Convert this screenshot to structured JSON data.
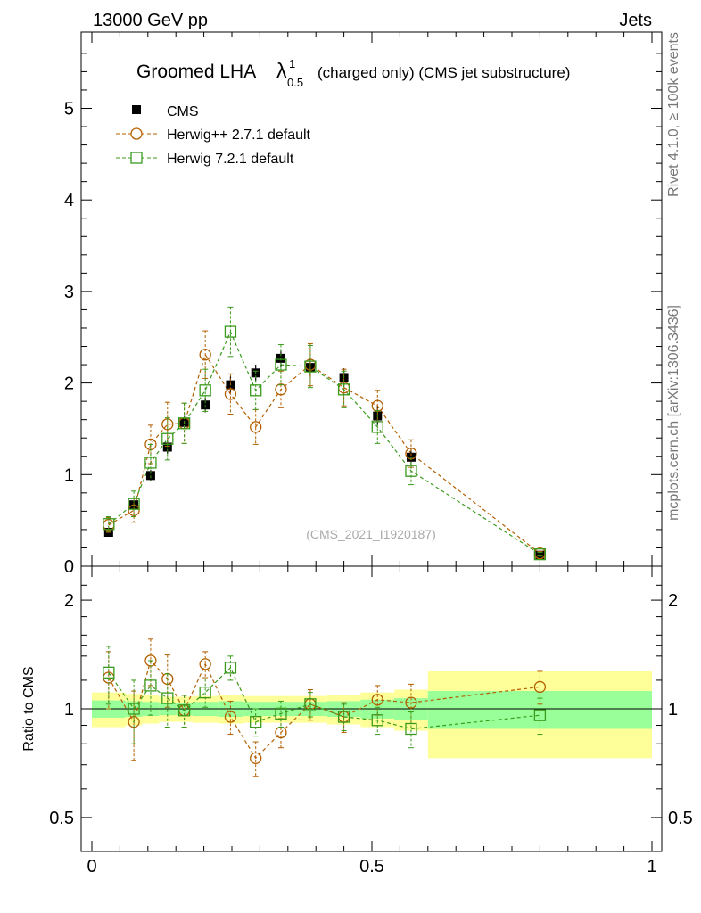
{
  "header": {
    "left": "13000 GeV pp",
    "right": "Jets"
  },
  "side_labels": {
    "rivet": "Rivet 4.1.0, ≥ 100k events",
    "mcplots": "mcplots.cern.ch [arXiv:1306.3436]"
  },
  "chart_data": {
    "type": "scatter",
    "title_main": "Groomed LHA",
    "title_lambda": "λ",
    "title_sup": "1",
    "title_sub": "0.5",
    "title_rest": "(charged only) (CMS jet substructure)",
    "analysis_tag": "(CMS_2021_I1920187)",
    "xlim": [
      0,
      1
    ],
    "ylim_main": [
      0,
      5.8
    ],
    "ylim_ratio": [
      0.4,
      2.3
    ],
    "ratio_ylabel": "Ratio to CMS",
    "x_ticks": [
      "0",
      "0.5",
      "1"
    ],
    "main_y_ticks": [
      "0",
      "1",
      "2",
      "3",
      "4",
      "5"
    ],
    "ratio_y_ticks": [
      "0.5",
      "1",
      "2"
    ],
    "bin_edges": [
      0,
      0.06,
      0.09,
      0.12,
      0.15,
      0.18,
      0.225,
      0.27,
      0.315,
      0.36,
      0.42,
      0.48,
      0.54,
      0.6,
      1.0
    ],
    "bin_centers": [
      0.03,
      0.075,
      0.105,
      0.135,
      0.165,
      0.2025,
      0.2475,
      0.2925,
      0.3375,
      0.39,
      0.45,
      0.51,
      0.57,
      0.8
    ],
    "band_inner_half": [
      0.055,
      0.05,
      0.045,
      0.04,
      0.04,
      0.045,
      0.05,
      0.045,
      0.045,
      0.045,
      0.05,
      0.06,
      0.07,
      0.12
    ],
    "band_outer_half": [
      0.11,
      0.1,
      0.09,
      0.08,
      0.08,
      0.085,
      0.09,
      0.085,
      0.085,
      0.085,
      0.095,
      0.11,
      0.13,
      0.27
    ],
    "series": [
      {
        "name": "CMS",
        "marker": "filled-square",
        "color": "#000000",
        "values": [
          0.37,
          0.67,
          0.99,
          1.3,
          1.57,
          1.76,
          1.98,
          2.11,
          2.27,
          2.17,
          2.06,
          1.64,
          1.19,
          0.12
        ],
        "errors": [
          0.04,
          0.05,
          0.06,
          0.07,
          0.07,
          0.08,
          0.09,
          0.09,
          0.1,
          0.1,
          0.1,
          0.1,
          0.1,
          0.03
        ]
      },
      {
        "name": "Herwig++ 2.7.1 default",
        "marker": "open-circle",
        "color": "#b35f00",
        "values": [
          0.45,
          0.61,
          1.33,
          1.55,
          1.56,
          2.31,
          1.88,
          1.52,
          1.93,
          2.2,
          1.95,
          1.75,
          1.23,
          0.14
        ],
        "errors": [
          0.08,
          0.13,
          0.21,
          0.24,
          0.22,
          0.26,
          0.22,
          0.19,
          0.2,
          0.23,
          0.2,
          0.17,
          0.15,
          0.02
        ],
        "ratio": [
          1.22,
          0.92,
          1.36,
          1.21,
          0.99,
          1.33,
          0.95,
          0.73,
          0.86,
          1.03,
          0.95,
          1.06,
          1.04,
          1.15
        ],
        "ratio_errors": [
          0.22,
          0.2,
          0.2,
          0.2,
          0.1,
          0.11,
          0.1,
          0.08,
          0.08,
          0.1,
          0.09,
          0.1,
          0.13,
          0.12
        ]
      },
      {
        "name": "Herwig 7.2.1 default",
        "marker": "open-square",
        "color": "#3a9a1c",
        "values": [
          0.46,
          0.68,
          1.13,
          1.39,
          1.56,
          1.92,
          2.56,
          1.92,
          2.2,
          2.18,
          1.93,
          1.52,
          1.04,
          0.13
        ],
        "errors": [
          0.08,
          0.14,
          0.2,
          0.23,
          0.22,
          0.23,
          0.27,
          0.21,
          0.22,
          0.23,
          0.2,
          0.18,
          0.15,
          0.02
        ],
        "ratio": [
          1.26,
          1.0,
          1.16,
          1.07,
          0.99,
          1.11,
          1.3,
          0.92,
          0.97,
          1.03,
          0.95,
          0.93,
          0.88,
          0.96
        ],
        "ratio_errors": [
          0.23,
          0.2,
          0.2,
          0.18,
          0.1,
          0.1,
          0.1,
          0.08,
          0.08,
          0.08,
          0.08,
          0.08,
          0.1,
          0.11
        ]
      }
    ]
  }
}
